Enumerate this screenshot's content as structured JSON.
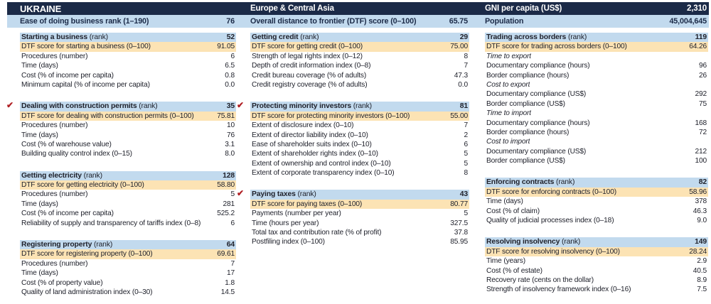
{
  "header": {
    "country": "UKRAINE",
    "region": "Europe & Central Asia",
    "gni_label": "GNI per capita (US$)",
    "gni_value": "2,310",
    "ease_label": "Ease of doing business rank (1–190)",
    "ease_value": "76",
    "dtf_label": "Overall distance to frontier (DTF) score (0–100)",
    "dtf_value": "65.75",
    "population_label": "Population",
    "population_value": "45,004,645"
  },
  "colors": {
    "navy": "#1B2A47",
    "light_blue": "#C2DAEE",
    "orange": "#FCE3B4",
    "check_red": "#B02025"
  },
  "check_icon": "✔",
  "columns": [
    [
      {
        "title": "Starting a business",
        "title_note": "(rank)",
        "rank": "52",
        "checked": false,
        "rows": [
          {
            "label": "DTF score for starting a business (0–100)",
            "value": "91.05",
            "type": "dtf"
          },
          {
            "label": "Procedures (number)",
            "value": "6",
            "type": "normal"
          },
          {
            "label": "Time (days)",
            "value": "6.5",
            "type": "normal"
          },
          {
            "label": "Cost (% of income per capita)",
            "value": "0.8",
            "type": "normal"
          },
          {
            "label": "Minimum capital (% of income per capita)",
            "value": "0.0",
            "type": "normal"
          }
        ]
      },
      {
        "title": "Dealing with construction permits",
        "title_note": "(rank)",
        "rank": "35",
        "checked": true,
        "rows": [
          {
            "label": "DTF score for dealing with construction permits (0–100)",
            "value": "75.81",
            "type": "dtf"
          },
          {
            "label": "Procedures (number)",
            "value": "10",
            "type": "normal"
          },
          {
            "label": "Time (days)",
            "value": "76",
            "type": "normal"
          },
          {
            "label": "Cost (% of warehouse value)",
            "value": "3.1",
            "type": "normal"
          },
          {
            "label": "Building quality control index (0–15)",
            "value": "8.0",
            "type": "normal"
          }
        ]
      },
      {
        "title": "Getting electricity",
        "title_note": "(rank)",
        "rank": "128",
        "checked": false,
        "rows": [
          {
            "label": "DTF score for getting electricity (0–100)",
            "value": "58.80",
            "type": "dtf"
          },
          {
            "label": "Procedures (number)",
            "value": "5",
            "type": "normal"
          },
          {
            "label": "Time (days)",
            "value": "281",
            "type": "normal"
          },
          {
            "label": "Cost (% of income per capita)",
            "value": "525.2",
            "type": "normal"
          },
          {
            "label": "Reliability of supply and transparency of tariffs index (0–8)",
            "value": "6",
            "type": "normal"
          }
        ]
      },
      {
        "title": "Registering property",
        "title_note": "(rank)",
        "rank": "64",
        "checked": false,
        "rows": [
          {
            "label": "DTF score for registering property (0–100)",
            "value": "69.61",
            "type": "dtf"
          },
          {
            "label": "Procedures (number)",
            "value": "7",
            "type": "normal"
          },
          {
            "label": "Time (days)",
            "value": "17",
            "type": "normal"
          },
          {
            "label": "Cost (% of property value)",
            "value": "1.8",
            "type": "normal"
          },
          {
            "label": "Quality of land administration index (0–30)",
            "value": "14.5",
            "type": "normal"
          }
        ]
      }
    ],
    [
      {
        "title": "Getting credit",
        "title_note": "(rank)",
        "rank": "29",
        "checked": false,
        "rows": [
          {
            "label": "DTF score for getting credit (0–100)",
            "value": "75.00",
            "type": "dtf"
          },
          {
            "label": "Strength of legal rights index (0–12)",
            "value": "8",
            "type": "normal"
          },
          {
            "label": "Depth of credit information index (0–8)",
            "value": "7",
            "type": "normal"
          },
          {
            "label": "Credit bureau coverage (% of adults)",
            "value": "47.3",
            "type": "normal"
          },
          {
            "label": "Credit registry coverage (% of adults)",
            "value": "0.0",
            "type": "normal"
          }
        ]
      },
      {
        "title": "Protecting minority investors",
        "title_note": "(rank)",
        "rank": "81",
        "checked": true,
        "rows": [
          {
            "label": "DTF score for protecting minority investors (0–100)",
            "value": "55.00",
            "type": "dtf"
          },
          {
            "label": "Extent of disclosure index (0–10)",
            "value": "7",
            "type": "normal"
          },
          {
            "label": "Extent of director liability index (0–10)",
            "value": "2",
            "type": "normal"
          },
          {
            "label": "Ease of shareholder suits index (0–10)",
            "value": "6",
            "type": "normal"
          },
          {
            "label": "Extent of shareholder rights index (0–10)",
            "value": "5",
            "type": "normal"
          },
          {
            "label": "Extent of ownership and control index (0–10)",
            "value": "5",
            "type": "normal"
          },
          {
            "label": "Extent of corporate transparency index (0–10)",
            "value": "8",
            "type": "normal"
          }
        ]
      },
      {
        "title": "Paying taxes",
        "title_note": "(rank)",
        "rank": "43",
        "checked": true,
        "rows": [
          {
            "label": "DTF score for paying taxes (0–100)",
            "value": "80.77",
            "type": "dtf"
          },
          {
            "label": "Payments (number per year)",
            "value": "5",
            "type": "normal"
          },
          {
            "label": "Time (hours per year)",
            "value": "327.5",
            "type": "normal"
          },
          {
            "label": "Total tax and contribution rate (% of profit)",
            "value": "37.8",
            "type": "normal"
          },
          {
            "label": "Postfiling index (0–100)",
            "value": "85.95",
            "type": "normal"
          }
        ]
      }
    ],
    [
      {
        "title": "Trading across borders",
        "title_note": "(rank)",
        "rank": "119",
        "checked": false,
        "rows": [
          {
            "label": "DTF score for trading across borders (0–100)",
            "value": "64.26",
            "type": "dtf"
          },
          {
            "label": "Time to export",
            "value": "",
            "type": "group"
          },
          {
            "label": "Documentary compliance (hours)",
            "value": "96",
            "type": "normal"
          },
          {
            "label": "Border compliance (hours)",
            "value": "26",
            "type": "normal"
          },
          {
            "label": "Cost to export",
            "value": "",
            "type": "group"
          },
          {
            "label": "Documentary compliance (US$)",
            "value": "292",
            "type": "normal"
          },
          {
            "label": "Border compliance (US$)",
            "value": "75",
            "type": "normal"
          },
          {
            "label": "Time to import",
            "value": "",
            "type": "group"
          },
          {
            "label": "Documentary compliance (hours)",
            "value": "168",
            "type": "normal"
          },
          {
            "label": "Border compliance (hours)",
            "value": "72",
            "type": "normal"
          },
          {
            "label": "Cost to import",
            "value": "",
            "type": "group"
          },
          {
            "label": "Documentary compliance (US$)",
            "value": "212",
            "type": "normal"
          },
          {
            "label": "Border compliance (US$)",
            "value": "100",
            "type": "normal"
          }
        ]
      },
      {
        "title": "Enforcing contracts",
        "title_note": "(rank)",
        "rank": "82",
        "checked": false,
        "rows": [
          {
            "label": "DTF score for enforcing contracts (0–100)",
            "value": "58.96",
            "type": "dtf"
          },
          {
            "label": "Time (days)",
            "value": "378",
            "type": "normal"
          },
          {
            "label": "Cost (% of claim)",
            "value": "46.3",
            "type": "normal"
          },
          {
            "label": "Quality of judicial processes index (0–18)",
            "value": "9.0",
            "type": "normal"
          }
        ]
      },
      {
        "title": "Resolving insolvency",
        "title_note": "(rank)",
        "rank": "149",
        "checked": false,
        "rows": [
          {
            "label": "DTF score for resolving insolvency (0–100)",
            "value": "28.24",
            "type": "dtf"
          },
          {
            "label": "Time (years)",
            "value": "2.9",
            "type": "normal"
          },
          {
            "label": "Cost (% of estate)",
            "value": "40.5",
            "type": "normal"
          },
          {
            "label": "Recovery rate (cents on the dollar)",
            "value": "8.9",
            "type": "normal"
          },
          {
            "label": "Strength of insolvency framework index (0–16)",
            "value": "7.5",
            "type": "normal"
          }
        ]
      }
    ]
  ]
}
